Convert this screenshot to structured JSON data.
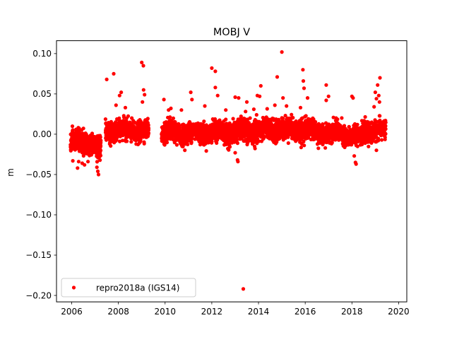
{
  "chart_data": {
    "type": "scatter",
    "title": "MOBJ V",
    "xlabel": "",
    "ylabel": "m",
    "xlim": [
      2005.35,
      2020.35
    ],
    "ylim": [
      -0.208,
      0.116
    ],
    "xticks": [
      2006,
      2008,
      2010,
      2012,
      2014,
      2016,
      2018,
      2020
    ],
    "yticks": [
      -0.2,
      -0.15,
      -0.1,
      -0.05,
      0.0,
      0.05,
      0.1
    ],
    "xtick_labels": [
      "2006",
      "2008",
      "2010",
      "2012",
      "2014",
      "2016",
      "2018",
      "2020"
    ],
    "ytick_labels": [
      "−0.20",
      "−0.15",
      "−0.10",
      "−0.05",
      "0.00",
      "0.05",
      "0.10"
    ],
    "grid": false,
    "legend": {
      "position": "lower-left",
      "entries": [
        "repro2018a (IGS14)"
      ]
    },
    "series": [
      {
        "name": "repro2018a (IGS14)",
        "color": "#ff0000",
        "marker": "circle",
        "segments": [
          {
            "start": 2005.95,
            "end": 2007.05,
            "mean": -0.01,
            "sd": 0.01
          },
          {
            "start": 2007.05,
            "end": 2007.25,
            "mean": -0.02,
            "sd": 0.012
          },
          {
            "start": 2007.45,
            "end": 2009.3,
            "mean": 0.004,
            "sd": 0.009
          },
          {
            "start": 2009.85,
            "end": 2012.4,
            "mean": 0.002,
            "sd": 0.009
          },
          {
            "start": 2012.4,
            "end": 2013.3,
            "mean": 0.003,
            "sd": 0.01
          },
          {
            "start": 2013.3,
            "end": 2014.2,
            "mean": 0.004,
            "sd": 0.01
          },
          {
            "start": 2014.2,
            "end": 2016.3,
            "mean": 0.006,
            "sd": 0.01
          },
          {
            "start": 2016.3,
            "end": 2017.6,
            "mean": 0.002,
            "sd": 0.009
          },
          {
            "start": 2017.6,
            "end": 2018.5,
            "mean": -0.002,
            "sd": 0.009
          },
          {
            "start": 2018.5,
            "end": 2019.45,
            "mean": 0.004,
            "sd": 0.009
          }
        ],
        "outliers": [
          {
            "x": 2006.05,
            "y": -0.033
          },
          {
            "x": 2006.25,
            "y": -0.042
          },
          {
            "x": 2006.3,
            "y": -0.034
          },
          {
            "x": 2006.45,
            "y": -0.036
          },
          {
            "x": 2006.55,
            "y": -0.038
          },
          {
            "x": 2007.08,
            "y": -0.041
          },
          {
            "x": 2007.12,
            "y": -0.046
          },
          {
            "x": 2007.15,
            "y": -0.05
          },
          {
            "x": 2007.5,
            "y": 0.068
          },
          {
            "x": 2007.8,
            "y": 0.075
          },
          {
            "x": 2007.9,
            "y": 0.036
          },
          {
            "x": 2008.05,
            "y": 0.048
          },
          {
            "x": 2008.12,
            "y": 0.052
          },
          {
            "x": 2008.3,
            "y": 0.033
          },
          {
            "x": 2009.0,
            "y": 0.089
          },
          {
            "x": 2009.07,
            "y": 0.085
          },
          {
            "x": 2009.08,
            "y": 0.055
          },
          {
            "x": 2009.12,
            "y": 0.049
          },
          {
            "x": 2009.03,
            "y": 0.04
          },
          {
            "x": 2009.95,
            "y": 0.043
          },
          {
            "x": 2010.15,
            "y": 0.03
          },
          {
            "x": 2010.25,
            "y": 0.032
          },
          {
            "x": 2010.7,
            "y": 0.03
          },
          {
            "x": 2011.1,
            "y": 0.052
          },
          {
            "x": 2011.15,
            "y": 0.043
          },
          {
            "x": 2011.7,
            "y": 0.035
          },
          {
            "x": 2012.0,
            "y": 0.082
          },
          {
            "x": 2012.15,
            "y": 0.078
          },
          {
            "x": 2012.15,
            "y": 0.058
          },
          {
            "x": 2012.25,
            "y": 0.048
          },
          {
            "x": 2012.6,
            "y": 0.03
          },
          {
            "x": 2013.0,
            "y": 0.046
          },
          {
            "x": 2013.15,
            "y": 0.045
          },
          {
            "x": 2013.0,
            "y": -0.023
          },
          {
            "x": 2013.1,
            "y": -0.032
          },
          {
            "x": 2013.12,
            "y": -0.034
          },
          {
            "x": 2013.35,
            "y": -0.192
          },
          {
            "x": 2013.5,
            "y": 0.04
          },
          {
            "x": 2013.8,
            "y": 0.031
          },
          {
            "x": 2013.95,
            "y": 0.048
          },
          {
            "x": 2014.05,
            "y": 0.047
          },
          {
            "x": 2014.1,
            "y": 0.06
          },
          {
            "x": 2014.7,
            "y": 0.036
          },
          {
            "x": 2014.8,
            "y": 0.071
          },
          {
            "x": 2015.0,
            "y": 0.102
          },
          {
            "x": 2015.05,
            "y": 0.045
          },
          {
            "x": 2015.2,
            "y": 0.035
          },
          {
            "x": 2015.8,
            "y": 0.033
          },
          {
            "x": 2015.9,
            "y": 0.08
          },
          {
            "x": 2015.92,
            "y": 0.066
          },
          {
            "x": 2015.95,
            "y": 0.057
          },
          {
            "x": 2016.1,
            "y": 0.045
          },
          {
            "x": 2016.9,
            "y": 0.061
          },
          {
            "x": 2017.0,
            "y": 0.047
          },
          {
            "x": 2016.9,
            "y": 0.042
          },
          {
            "x": 2018.0,
            "y": 0.047
          },
          {
            "x": 2018.05,
            "y": 0.045
          },
          {
            "x": 2018.1,
            "y": -0.027
          },
          {
            "x": 2018.15,
            "y": -0.035
          },
          {
            "x": 2018.18,
            "y": -0.037
          },
          {
            "x": 2019.0,
            "y": 0.052
          },
          {
            "x": 2019.05,
            "y": 0.044
          },
          {
            "x": 2019.1,
            "y": 0.061
          },
          {
            "x": 2019.15,
            "y": 0.048
          },
          {
            "x": 2019.2,
            "y": 0.07
          },
          {
            "x": 2019.18,
            "y": 0.04
          },
          {
            "x": 2018.95,
            "y": 0.034
          },
          {
            "x": 2019.05,
            "y": -0.02
          }
        ]
      }
    ]
  }
}
